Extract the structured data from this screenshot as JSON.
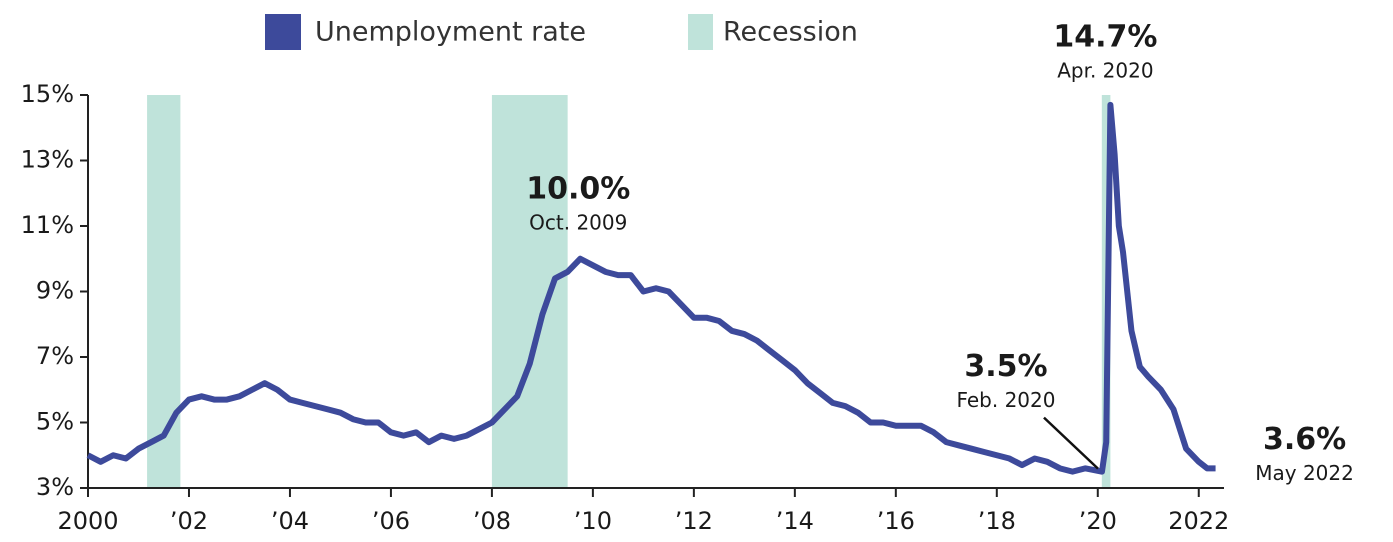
{
  "chart_data": {
    "type": "line",
    "series": [
      {
        "name": "Unemployment rate",
        "color": "#3d4a9b",
        "x": [
          2000.0,
          2000.25,
          2000.5,
          2000.75,
          2001.0,
          2001.25,
          2001.5,
          2001.75,
          2002.0,
          2002.25,
          2002.5,
          2002.75,
          2003.0,
          2003.25,
          2003.5,
          2003.75,
          2004.0,
          2004.25,
          2004.5,
          2004.75,
          2005.0,
          2005.25,
          2005.5,
          2005.75,
          2006.0,
          2006.25,
          2006.5,
          2006.75,
          2007.0,
          2007.25,
          2007.5,
          2007.75,
          2008.0,
          2008.25,
          2008.5,
          2008.75,
          2009.0,
          2009.25,
          2009.5,
          2009.75,
          2010.0,
          2010.25,
          2010.5,
          2010.75,
          2011.0,
          2011.25,
          2011.5,
          2011.75,
          2012.0,
          2012.25,
          2012.5,
          2012.75,
          2013.0,
          2013.25,
          2013.5,
          2013.75,
          2014.0,
          2014.25,
          2014.5,
          2014.75,
          2015.0,
          2015.25,
          2015.5,
          2015.75,
          2016.0,
          2016.25,
          2016.5,
          2016.75,
          2017.0,
          2017.25,
          2017.5,
          2017.75,
          2018.0,
          2018.25,
          2018.5,
          2018.75,
          2019.0,
          2019.25,
          2019.5,
          2019.75,
          2020.083,
          2020.167,
          2020.25,
          2020.333,
          2020.417,
          2020.5,
          2020.667,
          2020.833,
          2021.0,
          2021.25,
          2021.5,
          2021.75,
          2022.0,
          2022.167,
          2022.333
        ],
        "values": [
          4.0,
          3.8,
          4.0,
          3.9,
          4.2,
          4.4,
          4.6,
          5.3,
          5.7,
          5.8,
          5.7,
          5.7,
          5.8,
          6.0,
          6.2,
          6.0,
          5.7,
          5.6,
          5.5,
          5.4,
          5.3,
          5.1,
          5.0,
          5.0,
          4.7,
          4.6,
          4.7,
          4.4,
          4.6,
          4.5,
          4.6,
          4.8,
          5.0,
          5.4,
          5.8,
          6.8,
          8.3,
          9.4,
          9.6,
          10.0,
          9.8,
          9.6,
          9.5,
          9.5,
          9.0,
          9.1,
          9.0,
          8.6,
          8.2,
          8.2,
          8.1,
          7.8,
          7.7,
          7.5,
          7.2,
          6.9,
          6.6,
          6.2,
          5.9,
          5.6,
          5.5,
          5.3,
          5.0,
          5.0,
          4.9,
          4.9,
          4.9,
          4.7,
          4.4,
          4.3,
          4.2,
          4.1,
          4.0,
          3.9,
          3.7,
          3.9,
          3.8,
          3.6,
          3.5,
          3.6,
          3.5,
          4.4,
          14.7,
          13.2,
          11.0,
          10.2,
          7.8,
          6.7,
          6.4,
          6.0,
          5.4,
          4.2,
          3.8,
          3.6,
          3.6
        ]
      }
    ],
    "recession": {
      "name": "Recession",
      "color": "#bfe3da",
      "periods": [
        [
          2001.17,
          2001.83
        ],
        [
          2008.0,
          2009.5
        ],
        [
          2020.08,
          2020.25
        ]
      ]
    },
    "annotations": [
      {
        "label": "14.7%",
        "date": "Apr. 2020",
        "x": 2020.25,
        "y": 14.7
      },
      {
        "label": "10.0%",
        "date": "Oct. 2009",
        "x": 2009.75,
        "y": 10.0
      },
      {
        "label": "3.5%",
        "date": "Feb. 2020",
        "x": 2020.083,
        "y": 3.5
      },
      {
        "label": "3.6%",
        "date": "May 2022",
        "x": 2022.333,
        "y": 3.6
      }
    ],
    "xlim": [
      2000,
      2022.5
    ],
    "xticks": [
      2000,
      {
        "value": 2002,
        "label": "’02"
      },
      {
        "value": 2004,
        "label": "’04"
      },
      {
        "value": 2006,
        "label": "’06"
      },
      {
        "value": 2008,
        "label": "’08"
      },
      {
        "value": 2010,
        "label": "’10"
      },
      {
        "value": 2012,
        "label": "’12"
      },
      {
        "value": 2014,
        "label": "’14"
      },
      {
        "value": 2016,
        "label": "’16"
      },
      {
        "value": 2018,
        "label": "’18"
      },
      {
        "value": 2020,
        "label": "’20"
      },
      2022
    ],
    "ylim": [
      3,
      15
    ],
    "yticks": [
      {
        "value": 3,
        "label": "3%"
      },
      {
        "value": 5,
        "label": "5%"
      },
      {
        "value": 7,
        "label": "7%"
      },
      {
        "value": 9,
        "label": "9%"
      },
      {
        "value": 11,
        "label": "11%"
      },
      {
        "value": 13,
        "label": "13%"
      },
      {
        "value": 15,
        "label": "15%"
      }
    ]
  }
}
